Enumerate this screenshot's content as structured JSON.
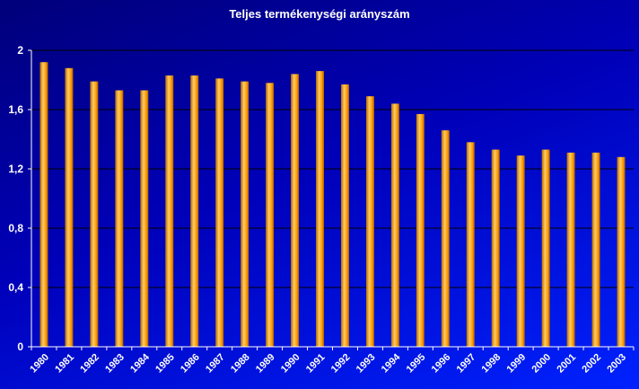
{
  "chart_data": {
    "type": "bar",
    "title": "Teljes termékenységi arányszám",
    "xlabel": "",
    "ylabel": "",
    "categories": [
      "1980",
      "1981",
      "1982",
      "1983",
      "1984",
      "1985",
      "1986",
      "1987",
      "1988",
      "1989",
      "1990",
      "1991",
      "1992",
      "1993",
      "1994",
      "1995",
      "1996",
      "1997",
      "1998",
      "1999",
      "2000",
      "2001",
      "2002",
      "2003"
    ],
    "values": [
      1.92,
      1.88,
      1.79,
      1.73,
      1.73,
      1.83,
      1.83,
      1.81,
      1.79,
      1.78,
      1.84,
      1.86,
      1.77,
      1.69,
      1.64,
      1.57,
      1.46,
      1.38,
      1.33,
      1.29,
      1.33,
      1.31,
      1.31,
      1.28
    ],
    "ylim": [
      0,
      2
    ],
    "yticks": [
      "0",
      "0,4",
      "0,8",
      "1,2",
      "1,6",
      "2"
    ],
    "ytick_values": [
      0,
      0.4,
      0.8,
      1.2,
      1.6,
      2
    ],
    "grid": true,
    "legend": "none",
    "colors": {
      "bar_light": "#ffcc66",
      "bar_mid": "#ff9900",
      "bar_dark": "#b36b00",
      "grid": "#000000",
      "axis": "#ffffff"
    }
  }
}
